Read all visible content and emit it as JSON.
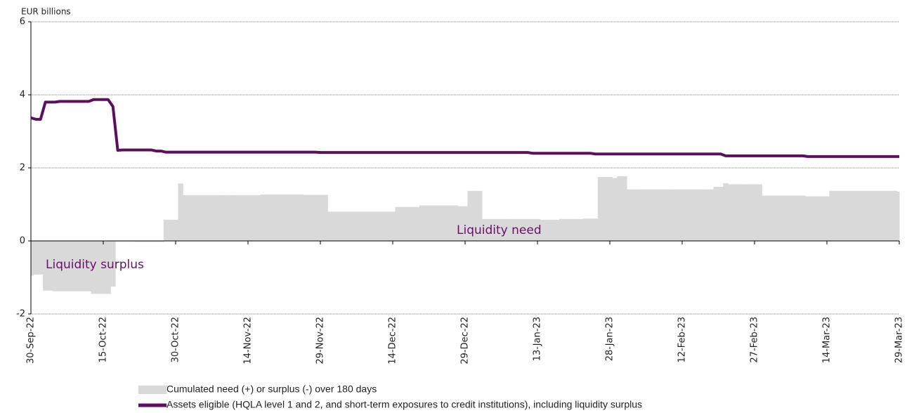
{
  "chart_data": {
    "type": "combo",
    "y_label": "EUR billions",
    "annotations": [
      "Liquidity surplus",
      "Liquidity need"
    ],
    "categories": [
      "30-Sep-22",
      null,
      null,
      null,
      null,
      null,
      null,
      null,
      null,
      null,
      null,
      null,
      null,
      null,
      null,
      "15-Oct-22",
      null,
      null,
      null,
      null,
      null,
      null,
      null,
      null,
      null,
      null,
      null,
      null,
      null,
      null,
      "30-Oct-22",
      null,
      null,
      null,
      null,
      null,
      null,
      null,
      null,
      null,
      null,
      null,
      null,
      null,
      null,
      "14-Nov-22",
      null,
      null,
      null,
      null,
      null,
      null,
      null,
      null,
      null,
      null,
      null,
      null,
      null,
      null,
      "29-Nov-22",
      null,
      null,
      null,
      null,
      null,
      null,
      null,
      null,
      null,
      null,
      null,
      null,
      null,
      null,
      "14-Dec-22",
      null,
      null,
      null,
      null,
      null,
      null,
      null,
      null,
      null,
      null,
      null,
      null,
      null,
      null,
      "29-Dec-22",
      null,
      null,
      null,
      null,
      null,
      null,
      null,
      null,
      null,
      null,
      null,
      null,
      null,
      null,
      "13-Jan-23",
      null,
      null,
      null,
      null,
      null,
      null,
      null,
      null,
      null,
      null,
      null,
      null,
      null,
      null,
      "28-Jan-23",
      null,
      null,
      null,
      null,
      null,
      null,
      null,
      null,
      null,
      null,
      null,
      null,
      null,
      null,
      "12-Feb-23",
      null,
      null,
      null,
      null,
      null,
      null,
      null,
      null,
      null,
      null,
      null,
      null,
      null,
      null,
      "27-Feb-23",
      null,
      null,
      null,
      null,
      null,
      null,
      null,
      null,
      null,
      null,
      null,
      null,
      null,
      null,
      "14-Mar-23",
      null,
      null,
      null,
      null,
      null,
      null,
      null,
      null,
      null,
      null,
      null,
      null,
      null,
      null,
      "29-Mar-23"
    ],
    "series": [
      {
        "name": "Cumulated need (+) or surplus (-) over 180 days",
        "color": "#d9d9d9",
        "type": "bar",
        "values": [
          -0.95,
          -0.92,
          -0.92,
          -1.36,
          -1.36,
          -1.38,
          -1.38,
          -1.38,
          -1.38,
          -1.38,
          -1.38,
          -1.38,
          -1.38,
          -1.45,
          -1.45,
          -1.45,
          -1.45,
          -1.25,
          -0.02,
          -0.02,
          -0.02,
          -0.02,
          -0.03,
          -0.03,
          -0.03,
          -0.03,
          -0.03,
          -0.03,
          0.58,
          0.58,
          0.58,
          1.57,
          1.25,
          1.25,
          1.25,
          1.25,
          1.25,
          1.25,
          1.25,
          1.25,
          1.25,
          1.25,
          1.25,
          1.25,
          1.25,
          1.25,
          1.25,
          1.25,
          1.27,
          1.27,
          1.27,
          1.27,
          1.27,
          1.27,
          1.27,
          1.27,
          1.27,
          1.26,
          1.26,
          1.26,
          1.26,
          1.26,
          0.8,
          0.8,
          0.8,
          0.8,
          0.8,
          0.8,
          0.8,
          0.8,
          0.8,
          0.8,
          0.8,
          0.8,
          0.8,
          0.8,
          0.93,
          0.93,
          0.93,
          0.93,
          0.93,
          0.97,
          0.97,
          0.97,
          0.97,
          0.97,
          0.97,
          0.97,
          0.97,
          0.95,
          0.95,
          1.37,
          1.37,
          1.37,
          0.6,
          0.6,
          0.6,
          0.6,
          0.6,
          0.6,
          0.6,
          0.6,
          0.6,
          0.6,
          0.6,
          0.6,
          0.58,
          0.58,
          0.58,
          0.58,
          0.6,
          0.6,
          0.6,
          0.6,
          0.6,
          0.61,
          0.61,
          0.61,
          1.75,
          1.75,
          1.75,
          1.72,
          1.77,
          1.77,
          1.41,
          1.41,
          1.41,
          1.41,
          1.41,
          1.41,
          1.41,
          1.41,
          1.41,
          1.41,
          1.41,
          1.41,
          1.41,
          1.41,
          1.41,
          1.41,
          1.41,
          1.41,
          1.48,
          1.48,
          1.58,
          1.55,
          1.55,
          1.55,
          1.55,
          1.55,
          1.55,
          1.55,
          1.24,
          1.24,
          1.24,
          1.24,
          1.24,
          1.24,
          1.24,
          1.24,
          1.24,
          1.22,
          1.22,
          1.22,
          1.22,
          1.22,
          1.37,
          1.37,
          1.37,
          1.37,
          1.37,
          1.37,
          1.37,
          1.37,
          1.37,
          1.37,
          1.37,
          1.37,
          1.37,
          1.37,
          1.35
        ]
      },
      {
        "name": "Assets eligible (HQLA level 1 and 2, and short-term exposures to credit institutions), including liquidity surplus",
        "color": "#5c0f5c",
        "type": "line",
        "values": [
          3.37,
          3.33,
          3.33,
          3.8,
          3.8,
          3.8,
          3.82,
          3.82,
          3.82,
          3.82,
          3.82,
          3.82,
          3.82,
          3.87,
          3.87,
          3.87,
          3.87,
          3.68,
          2.48,
          2.49,
          2.49,
          2.49,
          2.49,
          2.49,
          2.49,
          2.49,
          2.46,
          2.46,
          2.43,
          2.43,
          2.43,
          2.43,
          2.43,
          2.43,
          2.43,
          2.43,
          2.43,
          2.43,
          2.43,
          2.43,
          2.43,
          2.43,
          2.43,
          2.43,
          2.43,
          2.43,
          2.43,
          2.43,
          2.43,
          2.43,
          2.43,
          2.43,
          2.43,
          2.43,
          2.43,
          2.43,
          2.43,
          2.43,
          2.43,
          2.43,
          2.42,
          2.42,
          2.42,
          2.42,
          2.42,
          2.42,
          2.42,
          2.42,
          2.42,
          2.42,
          2.42,
          2.42,
          2.42,
          2.42,
          2.42,
          2.42,
          2.42,
          2.42,
          2.42,
          2.42,
          2.42,
          2.42,
          2.42,
          2.42,
          2.42,
          2.42,
          2.42,
          2.42,
          2.42,
          2.42,
          2.42,
          2.42,
          2.42,
          2.42,
          2.42,
          2.42,
          2.42,
          2.42,
          2.42,
          2.42,
          2.42,
          2.42,
          2.42,
          2.42,
          2.4,
          2.4,
          2.4,
          2.4,
          2.4,
          2.4,
          2.4,
          2.4,
          2.4,
          2.4,
          2.4,
          2.4,
          2.4,
          2.38,
          2.38,
          2.38,
          2.38,
          2.38,
          2.38,
          2.38,
          2.38,
          2.38,
          2.38,
          2.38,
          2.38,
          2.38,
          2.38,
          2.38,
          2.38,
          2.38,
          2.38,
          2.38,
          2.38,
          2.38,
          2.38,
          2.38,
          2.38,
          2.38,
          2.38,
          2.38,
          2.33,
          2.33,
          2.33,
          2.33,
          2.33,
          2.33,
          2.33,
          2.33,
          2.33,
          2.33,
          2.33,
          2.33,
          2.33,
          2.33,
          2.33,
          2.33,
          2.33,
          2.31,
          2.31,
          2.31,
          2.31,
          2.31,
          2.31,
          2.31,
          2.31,
          2.31,
          2.31,
          2.31,
          2.31,
          2.31,
          2.31,
          2.31,
          2.31,
          2.31,
          2.31,
          2.31,
          2.31
        ]
      }
    ],
    "ylim": [
      -2,
      6
    ],
    "yticks": [
      -2,
      0,
      2,
      4,
      6
    ],
    "grid": true,
    "legend": "bottom"
  }
}
